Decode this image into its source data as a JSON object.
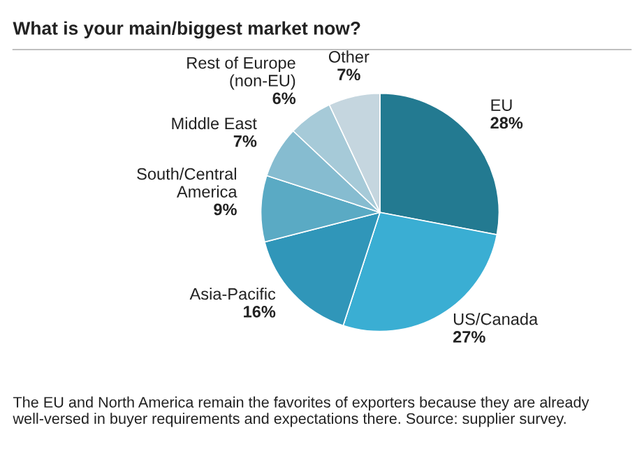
{
  "chart_data": {
    "type": "pie",
    "title": "What is your main/biggest market now?",
    "categories": [
      "EU",
      "US/Canada",
      "Asia-Pacific",
      "South/Central\nAmerica",
      "Middle East",
      "Rest of Europe\n(non-EU)",
      "Other"
    ],
    "values": [
      28,
      27,
      16,
      9,
      7,
      6,
      7
    ],
    "colors": [
      "#237a91",
      "#3aaed3",
      "#3096b9",
      "#5aaac4",
      "#86bcd0",
      "#a6cad8",
      "#c5d6df"
    ],
    "value_labels": [
      "28%",
      "27%",
      "16%",
      "9%",
      "7%",
      "6%",
      "7%"
    ],
    "annotations": [
      "The EU and North America remain the favorites of exporters because they are already well-versed in buyer requirements and expectations there. Source: supplier survey."
    ]
  }
}
